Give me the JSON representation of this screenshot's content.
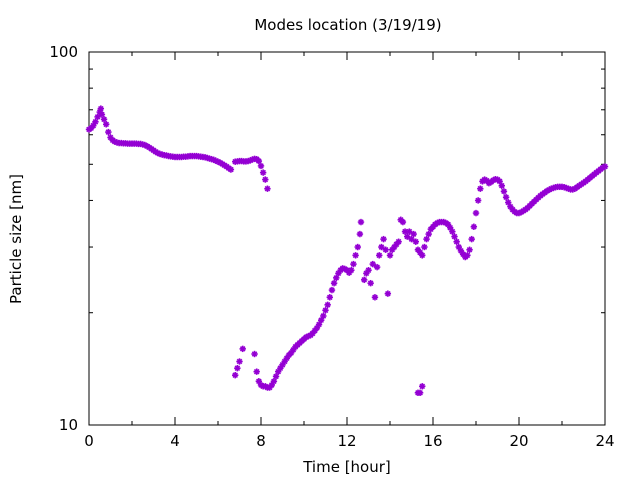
{
  "chart_data": {
    "type": "scatter",
    "title": "Modes location (3/19/19)",
    "xlabel": "Time [hour]",
    "ylabel": "Particle size [nm]",
    "xlim": [
      0,
      24
    ],
    "ylim": [
      10,
      100
    ],
    "yscale": "log",
    "grid": false,
    "x_ticks": [
      0,
      4,
      8,
      12,
      16,
      20,
      24
    ],
    "y_ticks": [
      10,
      100
    ],
    "marker_color": "#9400d3",
    "marker": "asterisk",
    "series": [
      {
        "name": "",
        "points": [
          [
            0.0,
            62
          ],
          [
            0.1,
            62.5
          ],
          [
            0.2,
            63.5
          ],
          [
            0.3,
            65
          ],
          [
            0.4,
            67
          ],
          [
            0.5,
            69
          ],
          [
            0.55,
            70.5
          ],
          [
            0.6,
            68
          ],
          [
            0.7,
            66
          ],
          [
            0.8,
            64
          ],
          [
            0.9,
            61
          ],
          [
            1.0,
            59
          ],
          [
            1.1,
            58
          ],
          [
            1.2,
            57.5
          ],
          [
            1.3,
            57.2
          ],
          [
            1.4,
            57
          ],
          [
            1.5,
            57
          ],
          [
            1.6,
            56.9
          ],
          [
            1.7,
            56.9
          ],
          [
            1.8,
            56.8
          ],
          [
            1.9,
            56.8
          ],
          [
            2.0,
            56.8
          ],
          [
            2.1,
            56.8
          ],
          [
            2.2,
            56.8
          ],
          [
            2.3,
            56.7
          ],
          [
            2.4,
            56.7
          ],
          [
            2.5,
            56.5
          ],
          [
            2.6,
            56.3
          ],
          [
            2.7,
            55.9
          ],
          [
            2.8,
            55.5
          ],
          [
            2.9,
            55.0
          ],
          [
            3.0,
            54.5
          ],
          [
            3.1,
            54.0
          ],
          [
            3.2,
            53.6
          ],
          [
            3.3,
            53.3
          ],
          [
            3.4,
            53.1
          ],
          [
            3.5,
            52.9
          ],
          [
            3.6,
            52.8
          ],
          [
            3.7,
            52.6
          ],
          [
            3.8,
            52.5
          ],
          [
            3.9,
            52.4
          ],
          [
            4.0,
            52.3
          ],
          [
            4.1,
            52.3
          ],
          [
            4.2,
            52.3
          ],
          [
            4.3,
            52.3
          ],
          [
            4.4,
            52.4
          ],
          [
            4.5,
            52.4
          ],
          [
            4.6,
            52.5
          ],
          [
            4.7,
            52.6
          ],
          [
            4.8,
            52.6
          ],
          [
            4.9,
            52.6
          ],
          [
            5.0,
            52.6
          ],
          [
            5.1,
            52.5
          ],
          [
            5.2,
            52.4
          ],
          [
            5.3,
            52.3
          ],
          [
            5.4,
            52.2
          ],
          [
            5.5,
            52.0
          ],
          [
            5.6,
            51.8
          ],
          [
            5.7,
            51.6
          ],
          [
            5.8,
            51.4
          ],
          [
            5.9,
            51.1
          ],
          [
            6.0,
            50.8
          ],
          [
            6.1,
            50.5
          ],
          [
            6.2,
            50.1
          ],
          [
            6.3,
            49.7
          ],
          [
            6.4,
            49.3
          ],
          [
            6.5,
            48.8
          ],
          [
            6.6,
            48.4
          ],
          [
            6.8,
            50.8
          ],
          [
            6.9,
            50.9
          ],
          [
            7.0,
            51.0
          ],
          [
            7.1,
            51.0
          ],
          [
            7.2,
            50.9
          ],
          [
            7.3,
            50.9
          ],
          [
            7.4,
            51.0
          ],
          [
            7.5,
            51.2
          ],
          [
            7.6,
            51.5
          ],
          [
            7.7,
            51.7
          ],
          [
            7.8,
            51.6
          ],
          [
            7.9,
            51.0
          ],
          [
            8.0,
            49.5
          ],
          [
            8.1,
            47.5
          ],
          [
            8.2,
            45.5
          ],
          [
            8.3,
            43.0
          ],
          [
            6.8,
            13.6
          ],
          [
            6.9,
            14.2
          ],
          [
            7.0,
            14.8
          ],
          [
            7.15,
            16.0
          ],
          [
            7.7,
            15.5
          ],
          [
            7.8,
            13.9
          ],
          [
            7.9,
            13.1
          ],
          [
            8.0,
            12.8
          ],
          [
            8.1,
            12.7
          ],
          [
            8.2,
            12.7
          ],
          [
            8.3,
            12.6
          ],
          [
            8.4,
            12.6
          ],
          [
            8.5,
            12.8
          ],
          [
            8.6,
            13.1
          ],
          [
            8.7,
            13.5
          ],
          [
            8.8,
            13.9
          ],
          [
            8.9,
            14.2
          ],
          [
            9.0,
            14.5
          ],
          [
            9.1,
            14.8
          ],
          [
            9.2,
            15.1
          ],
          [
            9.3,
            15.4
          ],
          [
            9.4,
            15.6
          ],
          [
            9.5,
            15.9
          ],
          [
            9.6,
            16.2
          ],
          [
            9.7,
            16.4
          ],
          [
            9.8,
            16.6
          ],
          [
            9.9,
            16.8
          ],
          [
            10.0,
            17.0
          ],
          [
            10.1,
            17.2
          ],
          [
            10.2,
            17.3
          ],
          [
            10.3,
            17.4
          ],
          [
            10.4,
            17.6
          ],
          [
            10.5,
            17.9
          ],
          [
            10.6,
            18.2
          ],
          [
            10.7,
            18.6
          ],
          [
            10.8,
            19.1
          ],
          [
            10.9,
            19.6
          ],
          [
            11.0,
            20.3
          ],
          [
            11.1,
            21.0
          ],
          [
            11.2,
            22.0
          ],
          [
            11.3,
            23.0
          ],
          [
            11.4,
            24.0
          ],
          [
            11.5,
            24.8
          ],
          [
            11.6,
            25.5
          ],
          [
            11.7,
            26.0
          ],
          [
            11.8,
            26.3
          ],
          [
            11.9,
            26.2
          ],
          [
            12.0,
            26.0
          ],
          [
            12.1,
            25.6
          ],
          [
            12.2,
            26.0
          ],
          [
            12.3,
            27.0
          ],
          [
            12.4,
            28.5
          ],
          [
            12.5,
            30.0
          ],
          [
            12.6,
            32.5
          ],
          [
            12.65,
            35.0
          ],
          [
            12.8,
            24.5
          ],
          [
            12.9,
            25.5
          ],
          [
            13.0,
            26.0
          ],
          [
            13.1,
            24.0
          ],
          [
            13.2,
            27.0
          ],
          [
            13.3,
            22.0
          ],
          [
            13.4,
            26.5
          ],
          [
            13.5,
            28.5
          ],
          [
            13.6,
            30.0
          ],
          [
            13.7,
            31.5
          ],
          [
            13.8,
            29.5
          ],
          [
            13.9,
            22.5
          ],
          [
            14.0,
            28.5
          ],
          [
            14.1,
            29.5
          ],
          [
            14.2,
            30.0
          ],
          [
            14.3,
            30.5
          ],
          [
            14.4,
            31.0
          ],
          [
            14.5,
            35.5
          ],
          [
            14.6,
            35.0
          ],
          [
            14.7,
            33.0
          ],
          [
            14.8,
            32.0
          ],
          [
            14.9,
            33.0
          ],
          [
            15.0,
            31.5
          ],
          [
            15.1,
            32.5
          ],
          [
            15.2,
            31.0
          ],
          [
            15.3,
            29.5
          ],
          [
            15.4,
            29.0
          ],
          [
            15.5,
            28.5
          ],
          [
            15.6,
            30.0
          ],
          [
            15.7,
            31.5
          ],
          [
            15.8,
            32.5
          ],
          [
            15.9,
            33.5
          ],
          [
            16.0,
            34.0
          ],
          [
            16.1,
            34.5
          ],
          [
            16.2,
            34.8
          ],
          [
            16.3,
            35.0
          ],
          [
            16.4,
            35.0
          ],
          [
            16.5,
            35.0
          ],
          [
            16.6,
            34.8
          ],
          [
            16.7,
            34.5
          ],
          [
            16.8,
            33.8
          ],
          [
            16.9,
            33.0
          ],
          [
            17.0,
            32.0
          ],
          [
            17.1,
            31.0
          ],
          [
            17.2,
            30.0
          ],
          [
            17.3,
            29.3
          ],
          [
            17.4,
            28.7
          ],
          [
            17.5,
            28.2
          ],
          [
            17.6,
            28.5
          ],
          [
            17.7,
            29.5
          ],
          [
            17.8,
            31.5
          ],
          [
            17.9,
            34.0
          ],
          [
            18.0,
            37.0
          ],
          [
            18.1,
            40.0
          ],
          [
            18.2,
            43.0
          ],
          [
            18.3,
            45.0
          ],
          [
            18.4,
            45.5
          ],
          [
            18.5,
            45.2
          ],
          [
            18.6,
            44.5
          ],
          [
            18.7,
            44.8
          ],
          [
            18.8,
            45.3
          ],
          [
            18.9,
            45.6
          ],
          [
            19.0,
            45.5
          ],
          [
            19.1,
            45.0
          ],
          [
            19.2,
            43.8
          ],
          [
            19.3,
            42.3
          ],
          [
            19.4,
            40.8
          ],
          [
            19.5,
            39.5
          ],
          [
            19.6,
            38.5
          ],
          [
            19.7,
            37.8
          ],
          [
            19.8,
            37.3
          ],
          [
            19.9,
            37.0
          ],
          [
            20.0,
            37.0
          ],
          [
            20.1,
            37.2
          ],
          [
            20.2,
            37.5
          ],
          [
            20.3,
            37.8
          ],
          [
            20.4,
            38.2
          ],
          [
            20.5,
            38.7
          ],
          [
            20.6,
            39.2
          ],
          [
            20.7,
            39.7
          ],
          [
            20.8,
            40.2
          ],
          [
            20.9,
            40.7
          ],
          [
            21.0,
            41.2
          ],
          [
            21.1,
            41.6
          ],
          [
            21.2,
            42.0
          ],
          [
            21.3,
            42.4
          ],
          [
            21.4,
            42.7
          ],
          [
            21.5,
            43.0
          ],
          [
            21.6,
            43.2
          ],
          [
            21.7,
            43.4
          ],
          [
            21.8,
            43.5
          ],
          [
            21.9,
            43.5
          ],
          [
            22.0,
            43.5
          ],
          [
            22.1,
            43.4
          ],
          [
            22.2,
            43.2
          ],
          [
            22.3,
            43.0
          ],
          [
            22.4,
            42.8
          ],
          [
            22.5,
            42.8
          ],
          [
            22.6,
            43.0
          ],
          [
            22.7,
            43.4
          ],
          [
            22.8,
            43.8
          ],
          [
            22.9,
            44.2
          ],
          [
            23.0,
            44.6
          ],
          [
            23.1,
            45.0
          ],
          [
            23.2,
            45.5
          ],
          [
            23.3,
            46.0
          ],
          [
            23.4,
            46.5
          ],
          [
            23.5,
            47.0
          ],
          [
            23.6,
            47.5
          ],
          [
            23.7,
            48.0
          ],
          [
            23.8,
            48.5
          ],
          [
            23.9,
            49.0
          ],
          [
            24.0,
            49.3
          ],
          [
            15.3,
            12.2
          ],
          [
            15.4,
            12.2
          ],
          [
            15.5,
            12.7
          ]
        ]
      }
    ]
  }
}
